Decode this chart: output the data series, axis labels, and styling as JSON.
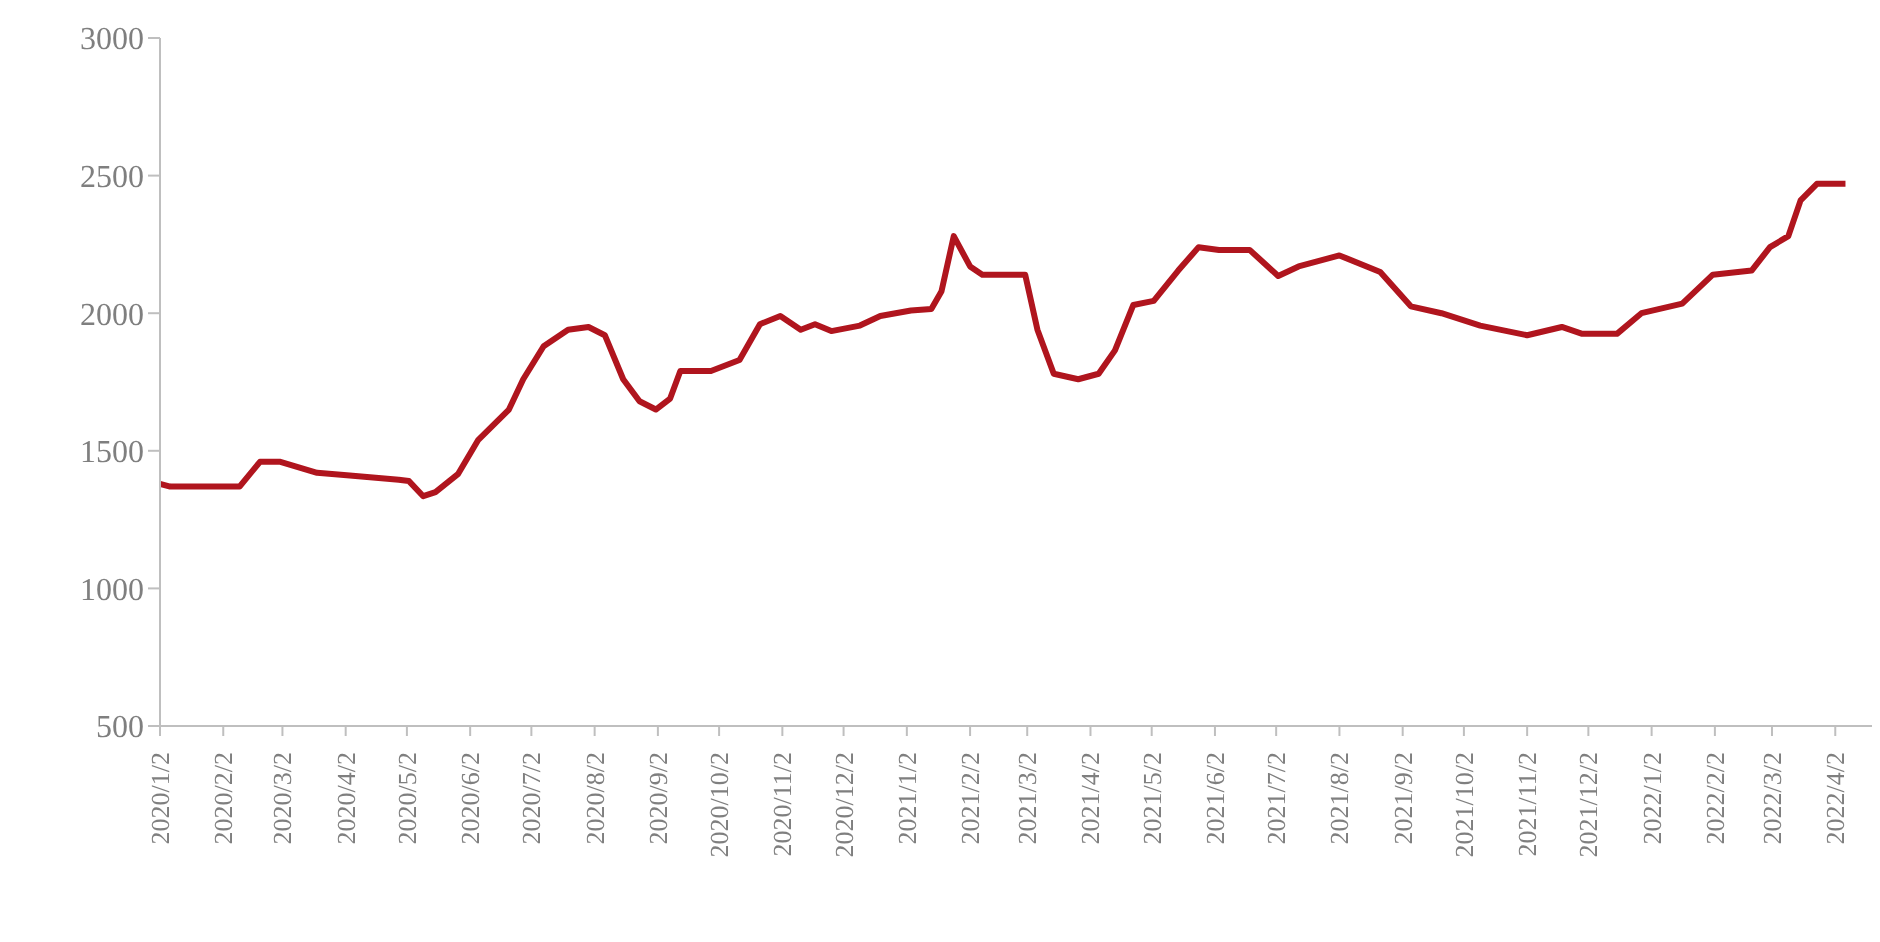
{
  "chart_data": {
    "type": "line",
    "x": [
      "2020-01-02",
      "2020-01-07",
      "2020-02-10",
      "2020-02-20",
      "2020-03-01",
      "2020-03-19",
      "2020-04-04",
      "2020-04-28",
      "2020-05-03",
      "2020-05-10",
      "2020-05-16",
      "2020-05-27",
      "2020-06-06",
      "2020-06-21",
      "2020-06-28",
      "2020-07-08",
      "2020-07-20",
      "2020-07-30",
      "2020-08-07",
      "2020-08-16",
      "2020-08-24",
      "2020-09-01",
      "2020-09-08",
      "2020-09-13",
      "2020-09-28",
      "2020-10-12",
      "2020-10-22",
      "2020-11-01",
      "2020-11-11",
      "2020-11-18",
      "2020-11-26",
      "2020-12-10",
      "2020-12-20",
      "2021-01-04",
      "2021-01-14",
      "2021-01-19",
      "2021-01-25",
      "2021-02-02",
      "2021-02-08",
      "2021-03-01",
      "2021-03-07",
      "2021-03-15",
      "2021-03-27",
      "2021-04-06",
      "2021-04-14",
      "2021-04-23",
      "2021-05-03",
      "2021-05-15",
      "2021-05-25",
      "2021-06-04",
      "2021-06-19",
      "2021-07-03",
      "2021-07-13",
      "2021-08-02",
      "2021-08-22",
      "2021-09-06",
      "2021-09-21",
      "2021-10-10",
      "2021-11-02",
      "2021-11-19",
      "2021-11-29",
      "2021-12-16",
      "2021-12-28",
      "2022-01-17",
      "2022-02-01",
      "2022-02-20",
      "2022-03-01",
      "2022-03-10",
      "2022-03-16",
      "2022-03-24",
      "2022-04-02",
      "2022-04-07"
    ],
    "series": [
      {
        "color": "#b0151e",
        "values": [
          1380,
          1370,
          1370,
          1460,
          1460,
          1420,
          1410,
          1395,
          1390,
          1335,
          1350,
          1415,
          1540,
          1650,
          1760,
          1880,
          1940,
          1950,
          1920,
          1760,
          1680,
          1650,
          1690,
          1790,
          1790,
          1830,
          1960,
          1990,
          1940,
          1960,
          1935,
          1955,
          1990,
          2010,
          2015,
          2080,
          2280,
          2170,
          2140,
          2140,
          1940,
          1780,
          1760,
          1780,
          1865,
          2030,
          2045,
          2155,
          2240,
          2230,
          2230,
          2135,
          2170,
          2210,
          2150,
          2025,
          2000,
          1955,
          1920,
          1950,
          1925,
          1925,
          2000,
          2035,
          2140,
          2155,
          2240,
          2280,
          2410,
          2470,
          2470,
          2470
        ]
      }
    ],
    "xlim": [
      "2020-01-02",
      "2022-04-20"
    ],
    "xticks": [
      {
        "value": "2020-01-02",
        "label": "2020/1/2"
      },
      {
        "value": "2020-02-02",
        "label": "2020/2/2"
      },
      {
        "value": "2020-03-02",
        "label": "2020/3/2"
      },
      {
        "value": "2020-04-02",
        "label": "2020/4/2"
      },
      {
        "value": "2020-05-02",
        "label": "2020/5/2"
      },
      {
        "value": "2020-06-02",
        "label": "2020/6/2"
      },
      {
        "value": "2020-07-02",
        "label": "2020/7/2"
      },
      {
        "value": "2020-08-02",
        "label": "2020/8/2"
      },
      {
        "value": "2020-09-02",
        "label": "2020/9/2"
      },
      {
        "value": "2020-10-02",
        "label": "2020/10/2"
      },
      {
        "value": "2020-11-02",
        "label": "2020/11/2"
      },
      {
        "value": "2020-12-02",
        "label": "2020/12/2"
      },
      {
        "value": "2021-01-02",
        "label": "2021/1/2"
      },
      {
        "value": "2021-02-02",
        "label": "2021/2/2"
      },
      {
        "value": "2021-03-02",
        "label": "2021/3/2"
      },
      {
        "value": "2021-04-02",
        "label": "2021/4/2"
      },
      {
        "value": "2021-05-02",
        "label": "2021/5/2"
      },
      {
        "value": "2021-06-02",
        "label": "2021/6/2"
      },
      {
        "value": "2021-07-02",
        "label": "2021/7/2"
      },
      {
        "value": "2021-08-02",
        "label": "2021/8/2"
      },
      {
        "value": "2021-09-02",
        "label": "2021/9/2"
      },
      {
        "value": "2021-10-02",
        "label": "2021/10/2"
      },
      {
        "value": "2021-11-02",
        "label": "2021/11/2"
      },
      {
        "value": "2021-12-02",
        "label": "2021/12/2"
      },
      {
        "value": "2022-01-02",
        "label": "2022/1/2"
      },
      {
        "value": "2022-02-02",
        "label": "2022/2/2"
      },
      {
        "value": "2022-03-02",
        "label": "2022/3/2"
      },
      {
        "value": "2022-04-02",
        "label": "2022/4/2"
      }
    ],
    "ylim": [
      500,
      3000
    ],
    "yticks": [
      500,
      1000,
      1500,
      2000,
      2500,
      3000
    ],
    "grid": false,
    "legend": false,
    "marker": "none",
    "line_style": "solid"
  }
}
